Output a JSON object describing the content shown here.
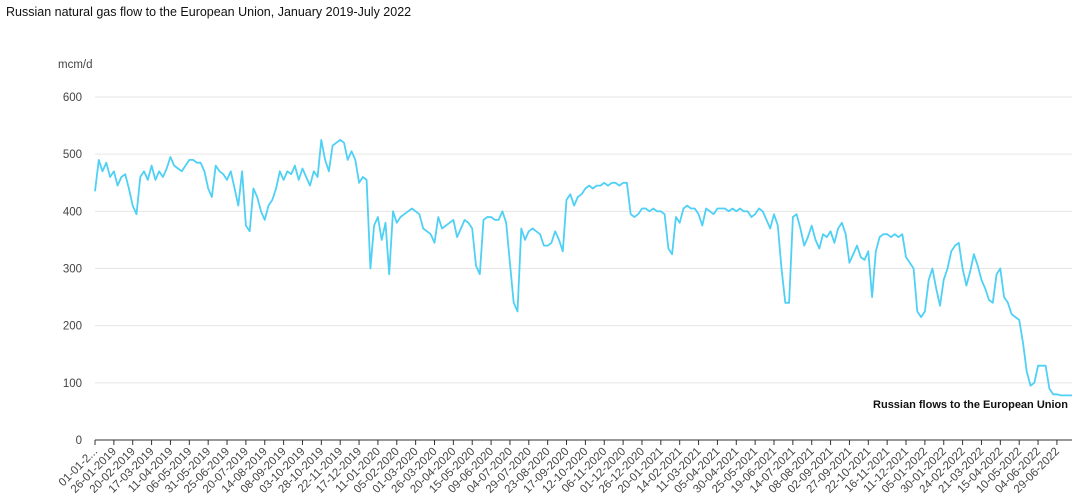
{
  "chart_data": {
    "type": "line",
    "title": "Russian natural gas flow to the European Union, January 2019-July 2022",
    "y_label": "mcm/d",
    "annotation": "Russian flows to the European Union",
    "categories": [
      "01-01-2...",
      null,
      null,
      null,
      null,
      "26-01-2019",
      null,
      null,
      null,
      null,
      "20-02-2019",
      null,
      null,
      null,
      null,
      "17-03-2019",
      null,
      null,
      null,
      null,
      "11-04-2019",
      null,
      null,
      null,
      null,
      "06-05-2019",
      null,
      null,
      null,
      null,
      "31-05-2019",
      null,
      null,
      null,
      null,
      "25-06-2019",
      null,
      null,
      null,
      null,
      "20-07-2019",
      null,
      null,
      null,
      null,
      "14-08-2019",
      null,
      null,
      null,
      null,
      "08-09-2019",
      null,
      null,
      null,
      null,
      "03-10-2019",
      null,
      null,
      null,
      null,
      "28-10-2019",
      null,
      null,
      null,
      null,
      "22-11-2019",
      null,
      null,
      null,
      null,
      "17-12-2019",
      null,
      null,
      null,
      null,
      "11-01-2020",
      null,
      null,
      null,
      null,
      "05-02-2020",
      null,
      null,
      null,
      null,
      "01-03-2020",
      null,
      null,
      null,
      null,
      "26-03-2020",
      null,
      null,
      null,
      null,
      "20-04-2020",
      null,
      null,
      null,
      null,
      "15-05-2020",
      null,
      null,
      null,
      null,
      "09-06-2020",
      null,
      null,
      null,
      null,
      "04-07-2020",
      null,
      null,
      null,
      null,
      "29-07-2020",
      null,
      null,
      null,
      null,
      "23-08-2020",
      null,
      null,
      null,
      null,
      "17-09-2020",
      null,
      null,
      null,
      null,
      "12-10-2020",
      null,
      null,
      null,
      null,
      "06-11-2020",
      null,
      null,
      null,
      null,
      "01-12-2020",
      null,
      null,
      null,
      null,
      "26-12-2020",
      null,
      null,
      null,
      null,
      "20-01-2021",
      null,
      null,
      null,
      null,
      "14-02-2021",
      null,
      null,
      null,
      null,
      "11-03-2021",
      null,
      null,
      null,
      null,
      "05-04-2021",
      null,
      null,
      null,
      null,
      "30-04-2021",
      null,
      null,
      null,
      null,
      "25-05-2021",
      null,
      null,
      null,
      null,
      "19-06-2021",
      null,
      null,
      null,
      null,
      "14-07-2021",
      null,
      null,
      null,
      null,
      "08-08-2021",
      null,
      null,
      null,
      null,
      "02-09-2021",
      null,
      null,
      null,
      null,
      "27-09-2021",
      null,
      null,
      null,
      null,
      "22-10-2021",
      null,
      null,
      null,
      null,
      "16-11-2021",
      null,
      null,
      null,
      null,
      "11-12-2021",
      null,
      null,
      null,
      null,
      "05-01-2022",
      null,
      null,
      null,
      null,
      "30-01-2022",
      null,
      null,
      null,
      null,
      "24-02-2022",
      null,
      null,
      null,
      null,
      "21-03-2022",
      null,
      null,
      null,
      null,
      "15-04-2022",
      null,
      null,
      null,
      null,
      "10-05-2022",
      null,
      null,
      null,
      null,
      "04-06-2022",
      null,
      null,
      null,
      null,
      "29-06-2022",
      null,
      null,
      null,
      null
    ],
    "series": [
      {
        "name": "Russian flows to the European Union",
        "color": "#4fd0f5",
        "values": [
          435,
          490,
          470,
          485,
          460,
          470,
          445,
          460,
          465,
          440,
          410,
          395,
          460,
          470,
          455,
          480,
          455,
          470,
          460,
          475,
          495,
          480,
          475,
          470,
          480,
          490,
          490,
          485,
          485,
          470,
          440,
          425,
          480,
          470,
          465,
          455,
          470,
          440,
          410,
          470,
          375,
          365,
          440,
          425,
          400,
          385,
          410,
          420,
          440,
          470,
          455,
          470,
          465,
          480,
          455,
          475,
          460,
          445,
          470,
          460,
          525,
          490,
          470,
          515,
          520,
          525,
          520,
          490,
          505,
          490,
          450,
          460,
          455,
          300,
          375,
          390,
          350,
          380,
          290,
          400,
          380,
          390,
          395,
          400,
          405,
          400,
          395,
          370,
          365,
          360,
          345,
          390,
          370,
          375,
          380,
          385,
          355,
          370,
          385,
          380,
          370,
          305,
          290,
          385,
          390,
          390,
          385,
          385,
          400,
          380,
          310,
          240,
          225,
          370,
          350,
          365,
          370,
          365,
          360,
          340,
          340,
          345,
          365,
          350,
          330,
          420,
          430,
          410,
          425,
          430,
          440,
          445,
          440,
          445,
          445,
          450,
          445,
          450,
          450,
          445,
          450,
          450,
          395,
          390,
          395,
          405,
          405,
          400,
          405,
          400,
          400,
          395,
          335,
          325,
          390,
          380,
          405,
          410,
          405,
          405,
          395,
          375,
          405,
          400,
          395,
          405,
          405,
          405,
          400,
          405,
          400,
          405,
          400,
          400,
          390,
          395,
          405,
          400,
          385,
          370,
          395,
          375,
          300,
          240,
          240,
          390,
          395,
          370,
          340,
          355,
          375,
          350,
          335,
          360,
          355,
          365,
          345,
          370,
          380,
          360,
          310,
          325,
          340,
          320,
          315,
          330,
          250,
          330,
          355,
          360,
          360,
          355,
          360,
          355,
          360,
          320,
          310,
          300,
          225,
          215,
          225,
          280,
          300,
          265,
          235,
          280,
          300,
          330,
          340,
          345,
          300,
          270,
          295,
          325,
          305,
          280,
          265,
          245,
          240,
          290,
          300,
          250,
          240,
          220,
          215,
          210,
          170,
          120,
          95,
          100,
          130,
          130,
          130,
          90,
          80,
          80,
          78,
          78,
          78,
          78
        ]
      }
    ],
    "ylim": [
      0,
      600
    ],
    "yticks": [
      0,
      100,
      200,
      300,
      400,
      500,
      600
    ],
    "grid": true
  }
}
